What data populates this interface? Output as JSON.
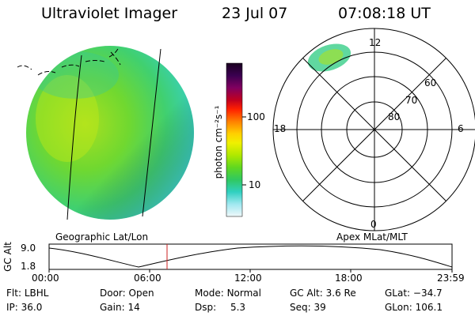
{
  "header": {
    "title": "Ultraviolet Imager",
    "date": "23 Jul 07",
    "time": "07:08:18 UT"
  },
  "colorbar": {
    "unit_label": "photon cm⁻²s⁻¹",
    "ticks": [
      "100",
      "10"
    ],
    "colors": [
      "#1a0020",
      "#2a0040",
      "#500060",
      "#900050",
      "#c00020",
      "#ff0000",
      "#ff7a00",
      "#ffb000",
      "#ffe000",
      "#c8f000",
      "#80e000",
      "#3cd040",
      "#30c8a0",
      "#40d8e0",
      "#a0e8f0",
      "#d8f4f8"
    ]
  },
  "left_panel": {
    "caption": "Geographic Lat/Lon"
  },
  "right_panel": {
    "caption": "Apex MLat/MLT",
    "mlt_labels": [
      "12",
      "18",
      "6",
      "0"
    ],
    "lat_labels": [
      "60",
      "70",
      "80"
    ]
  },
  "altitude_plot": {
    "ylabel": "GC Alt",
    "yticks": [
      "9.0",
      "1.8"
    ],
    "xticks": [
      "00:00",
      "06:00",
      "12:00",
      "18:00",
      "23:59"
    ],
    "marker_time": "07:08",
    "marker_color": "#cc2020"
  },
  "footer": {
    "row1": [
      {
        "label": "Flt:",
        "value": "LBHL"
      },
      {
        "label": "Door:",
        "value": "Open"
      },
      {
        "label": "Mode:",
        "value": "Normal"
      },
      {
        "label": "GC Alt:",
        "value": "3.6 Re"
      },
      {
        "label": "GLat:",
        "value": "−34.7"
      }
    ],
    "row2": [
      {
        "label": "IP:",
        "value": "36.0"
      },
      {
        "label": "Gain:",
        "value": "14"
      },
      {
        "label": "Dsp:",
        "value": "5.3"
      },
      {
        "label": "Seq:",
        "value": "39"
      },
      {
        "label": "GLon:",
        "value": "106.1"
      }
    ]
  }
}
